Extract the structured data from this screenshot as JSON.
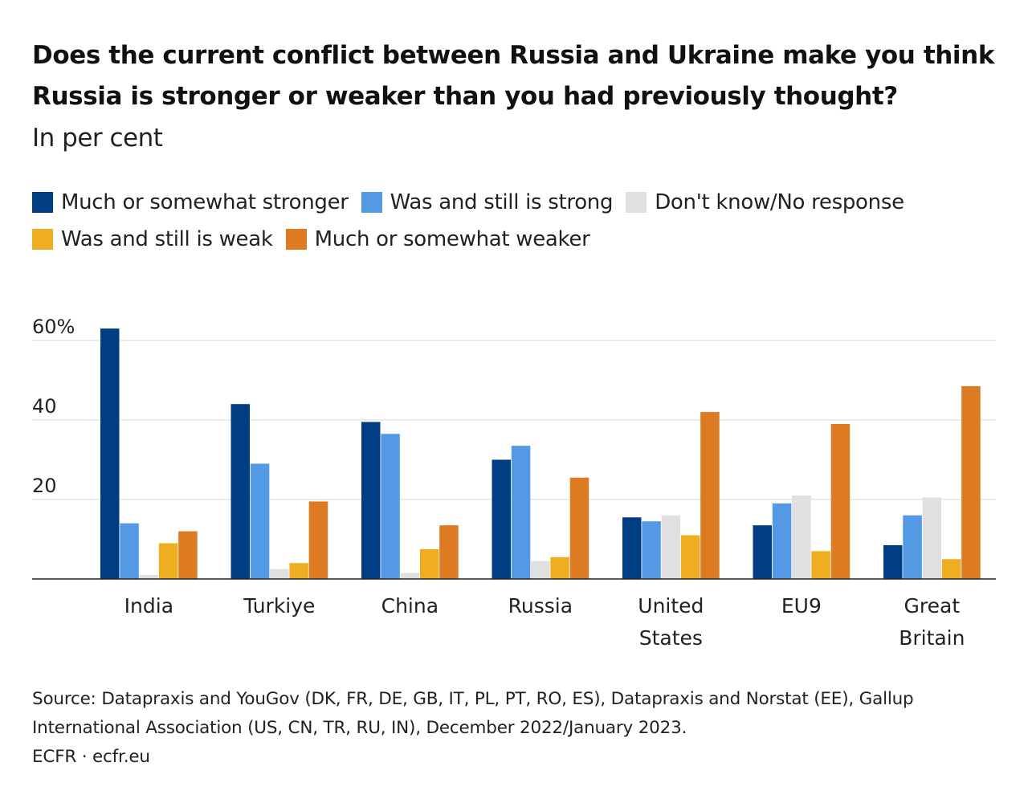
{
  "chart": {
    "title": "Does the current conflict between Russia and Ukraine make you think Russia is stronger or weaker than you had previously thought?",
    "subtitle": "In per cent",
    "source": "Source: Datapraxis and YouGov (DK, FR, DE, GB, IT, PL, PT, RO, ES), Datapraxis and Norstat (EE), Gallup International Association (US, CN, TR, RU, IN), December 2022/January 2023.",
    "credit": "ECFR · ecfr.eu"
  },
  "chart_data": {
    "type": "bar",
    "title": "Does the current conflict between Russia and Ukraine make you think Russia is stronger or weaker than you had previously thought?",
    "subtitle": "In per cent",
    "categories": [
      "India",
      "Turkiye",
      "China",
      "Russia",
      "United States",
      "EU9",
      "Great Britain"
    ],
    "category_lines": [
      [
        "India"
      ],
      [
        "Turkiye"
      ],
      [
        "China"
      ],
      [
        "Russia"
      ],
      [
        "United",
        "States"
      ],
      [
        "EU9"
      ],
      [
        "Great",
        "Britain"
      ]
    ],
    "series": [
      {
        "name": "Much or somewhat stronger",
        "color": "#003d82",
        "values": [
          63,
          44,
          39.5,
          30,
          15.5,
          13.5,
          8.5
        ]
      },
      {
        "name": "Was and still is strong",
        "color": "#5499e3",
        "values": [
          14,
          29,
          36.5,
          33.5,
          14.5,
          19,
          16
        ]
      },
      {
        "name": "Don't know/No response",
        "color": "#e0e0e0",
        "values": [
          1,
          2.5,
          1.5,
          4.5,
          16,
          21,
          20.5
        ]
      },
      {
        "name": "Was and still is weak",
        "color": "#efae22",
        "values": [
          9,
          4,
          7.5,
          5.5,
          11,
          7,
          5
        ]
      },
      {
        "name": "Much or somewhat weaker",
        "color": "#dc7b22",
        "values": [
          12,
          19.5,
          13.5,
          25.5,
          42,
          39,
          48.5
        ]
      }
    ],
    "ylim": [
      0,
      60
    ],
    "yticks": [
      20,
      40,
      60
    ],
    "ytick_labels": [
      "20",
      "40",
      "60%"
    ],
    "grid": true,
    "legend_position": "top"
  }
}
